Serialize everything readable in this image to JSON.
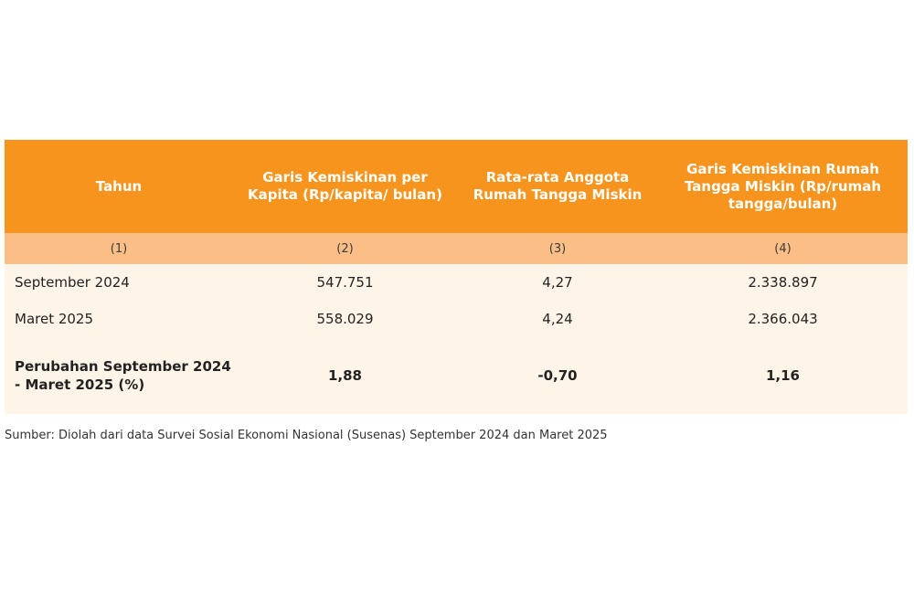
{
  "table": {
    "headers": [
      "Tahun",
      "Garis Kemiskinan per Kapita (Rp/kapita/ bulan)",
      "Rata-rata Anggota Rumah Tangga Miskin",
      "Garis Kemiskinan Rumah Tangga Miskin (Rp/rumah tangga/bulan)"
    ],
    "column_numbers": [
      "(1)",
      "(2)",
      "(3)",
      "(4)"
    ],
    "rows": [
      [
        "September 2024",
        "547.751",
        "4,27",
        "2.338.897"
      ],
      [
        "Maret 2025",
        "558.029",
        "4,24",
        "2.366.043"
      ]
    ],
    "change_row": [
      "Perubahan September 2024 - Maret 2025 (%)",
      "1,88",
      "-0,70",
      "1,16"
    ],
    "colors": {
      "header_bg": "#f7941d",
      "subheader_bg": "#fbbe86",
      "body_bg": "#fef5e8"
    }
  },
  "source": "Sumber: Diolah dari data Survei Sosial Ekonomi Nasional (Susenas) September 2024 dan Maret 2025"
}
